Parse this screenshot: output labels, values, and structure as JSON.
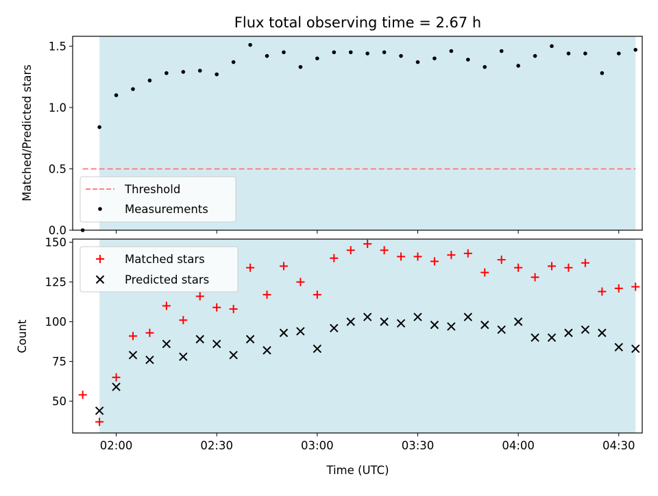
{
  "title": "Flux total observing time = 2.67 h",
  "colors": {
    "observing_band": "#d4eaf1",
    "threshold": "#ff7f7f",
    "matched": "#ff0000",
    "predicted": "#000000",
    "measurements": "#000000"
  },
  "chart_data": [
    {
      "type": "scatter",
      "panel": "top",
      "title": "Flux total observing time = 2.67 h",
      "xlabel": "",
      "ylabel": "Matched/Predicted stars",
      "ylim": [
        0,
        1.58
      ],
      "yticks": [
        0.0,
        0.5,
        1.0,
        1.5
      ],
      "ytick_labels": [
        "0.0",
        "0.5",
        "1.0",
        "1.5"
      ],
      "xlim": [
        "01:47",
        "04:37"
      ],
      "observing_band": [
        "01:55",
        "04:35"
      ],
      "legend": {
        "placement": "lower-left",
        "entries": [
          "Threshold",
          "Measurements"
        ]
      },
      "threshold": {
        "name": "Threshold",
        "y": 0.5,
        "x_range": [
          "01:50",
          "04:35"
        ]
      },
      "series": [
        {
          "name": "Measurements",
          "x": [
            "01:50",
            "01:55",
            "02:00",
            "02:05",
            "02:10",
            "02:15",
            "02:20",
            "02:25",
            "02:30",
            "02:35",
            "02:40",
            "02:45",
            "02:50",
            "02:55",
            "03:00",
            "03:05",
            "03:10",
            "03:15",
            "03:20",
            "03:25",
            "03:30",
            "03:35",
            "03:40",
            "03:45",
            "03:50",
            "03:55",
            "04:00",
            "04:05",
            "04:10",
            "04:15",
            "04:20",
            "04:25",
            "04:30",
            "04:35"
          ],
          "values": [
            0.0,
            0.84,
            1.1,
            1.15,
            1.22,
            1.28,
            1.29,
            1.3,
            1.27,
            1.37,
            1.51,
            1.42,
            1.45,
            1.33,
            1.4,
            1.45,
            1.45,
            1.44,
            1.45,
            1.42,
            1.37,
            1.4,
            1.46,
            1.39,
            1.33,
            1.46,
            1.34,
            1.42,
            1.5,
            1.44,
            1.44,
            1.28,
            1.44,
            1.47
          ]
        }
      ]
    },
    {
      "type": "scatter",
      "panel": "bottom",
      "xlabel": "Time (UTC)",
      "ylabel": "Count",
      "ylim": [
        30,
        152
      ],
      "yticks": [
        50,
        75,
        100,
        125,
        150
      ],
      "ytick_labels": [
        "50",
        "75",
        "100",
        "125",
        "150"
      ],
      "xlim": [
        "01:47",
        "04:37"
      ],
      "xticks": [
        "02:00",
        "02:30",
        "03:00",
        "03:30",
        "04:00",
        "04:30"
      ],
      "observing_band": [
        "01:55",
        "04:35"
      ],
      "legend": {
        "placement": "upper-left",
        "entries": [
          "Matched stars",
          "Predicted stars"
        ]
      },
      "categories": [
        "01:50",
        "01:55",
        "02:00",
        "02:05",
        "02:10",
        "02:15",
        "02:20",
        "02:25",
        "02:30",
        "02:35",
        "02:40",
        "02:45",
        "02:50",
        "02:55",
        "03:00",
        "03:05",
        "03:10",
        "03:15",
        "03:20",
        "03:25",
        "03:30",
        "03:35",
        "03:40",
        "03:45",
        "03:50",
        "03:55",
        "04:00",
        "04:05",
        "04:10",
        "04:15",
        "04:20",
        "04:25",
        "04:30",
        "04:35"
      ],
      "series": [
        {
          "name": "Matched stars",
          "marker": "plus",
          "values": [
            54,
            37,
            65,
            91,
            93,
            110,
            101,
            116,
            109,
            108,
            134,
            117,
            135,
            125,
            117,
            140,
            145,
            149,
            145,
            141,
            141,
            138,
            142,
            143,
            131,
            139,
            134,
            128,
            135,
            134,
            137,
            119,
            121,
            122
          ]
        },
        {
          "name": "Predicted stars",
          "marker": "x",
          "values": [
            null,
            44,
            59,
            79,
            76,
            86,
            78,
            89,
            86,
            79,
            89,
            82,
            93,
            94,
            83,
            96,
            100,
            103,
            100,
            99,
            103,
            98,
            97,
            103,
            98,
            95,
            100,
            90,
            90,
            93,
            95,
            93,
            84,
            83
          ]
        }
      ]
    }
  ]
}
